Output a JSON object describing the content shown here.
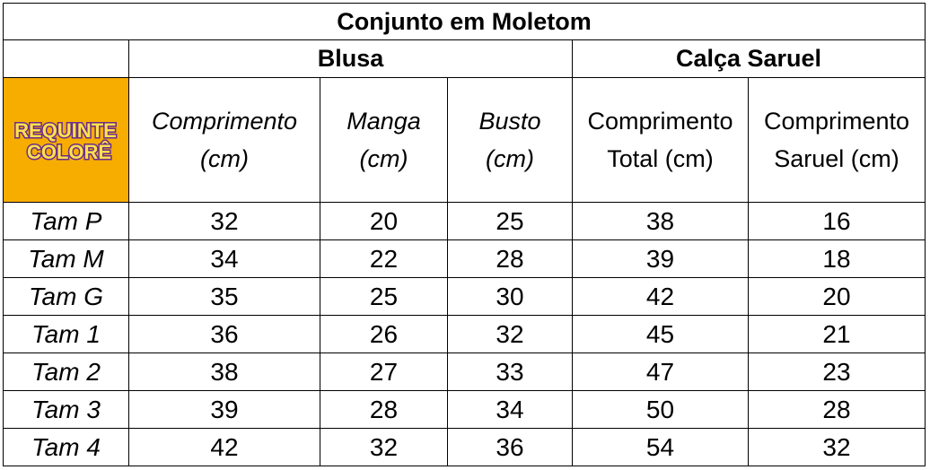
{
  "title": "Conjunto em Moletom",
  "groups": {
    "blusa": "Blusa",
    "calca": "Calça Saruel"
  },
  "logo": {
    "text": "REQUINTE COLORÊ",
    "line1": "REQUINTE",
    "line2": "COLORÊ"
  },
  "headers": [
    {
      "line1": "Comprimento",
      "line2": "(cm)"
    },
    {
      "line1": "Manga",
      "line2": "(cm)"
    },
    {
      "line1": "Busto",
      "line2": "(cm)"
    },
    {
      "line1": "Comprimento",
      "line2": "Total (cm)"
    },
    {
      "line1": "Comprimento",
      "line2": "Saruel (cm)"
    }
  ],
  "rows": [
    {
      "size": "Tam P",
      "values": [
        "32",
        "20",
        "25",
        "38",
        "16"
      ]
    },
    {
      "size": "Tam M",
      "values": [
        "34",
        "22",
        "28",
        "39",
        "18"
      ]
    },
    {
      "size": "Tam G",
      "values": [
        "35",
        "25",
        "30",
        "42",
        "20"
      ]
    },
    {
      "size": "Tam 1",
      "values": [
        "36",
        "26",
        "32",
        "45",
        "21"
      ]
    },
    {
      "size": "Tam 2",
      "values": [
        "38",
        "27",
        "33",
        "47",
        "23"
      ]
    },
    {
      "size": "Tam 3",
      "values": [
        "39",
        "28",
        "34",
        "50",
        "28"
      ]
    },
    {
      "size": "Tam 4",
      "values": [
        "42",
        "32",
        "36",
        "54",
        "32"
      ]
    }
  ]
}
